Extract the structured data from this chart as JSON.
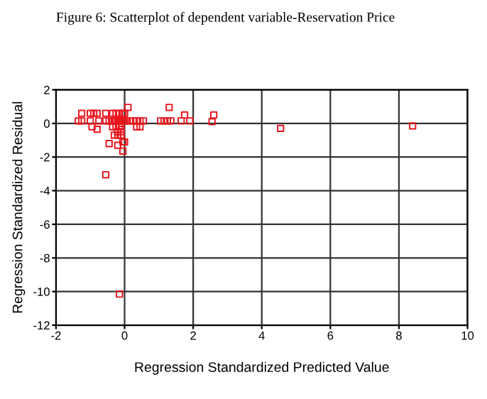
{
  "chart_data": {
    "type": "scatter",
    "title": "Figure 6: Scatterplot of dependent variable-Reservation Price",
    "xlabel": "Regression Standardized Predicted Value",
    "ylabel": "Regression Standardized Residual",
    "xlim": [
      -2,
      10
    ],
    "xticks": [
      -2,
      0,
      2,
      4,
      6,
      8,
      10
    ],
    "ylim": [
      -12,
      2
    ],
    "yticks": [
      -12,
      -10,
      -8,
      -6,
      -4,
      -2,
      0,
      2
    ],
    "grid": true,
    "marker": "square",
    "series": [
      {
        "color": "#e8141c",
        "x": [
          -1.25,
          -1.0,
          -0.9,
          -0.8,
          -0.55,
          -0.35,
          -0.25,
          -0.15,
          -0.05,
          0.0,
          0.1,
          1.3,
          1.75,
          2.6,
          -1.35,
          -1.25,
          -1.0,
          -0.75,
          -0.55,
          -0.45,
          -0.35,
          -0.3,
          -0.25,
          -0.2,
          -0.15,
          -0.1,
          -0.05,
          0.0,
          0.05,
          0.15,
          0.25,
          0.35,
          0.45,
          0.55,
          1.05,
          1.15,
          1.25,
          1.35,
          1.65,
          1.9,
          2.55,
          8.4,
          4.55,
          -0.95,
          -0.35,
          -0.25,
          0.35,
          0.45,
          -0.15,
          -0.8,
          -0.1,
          -0.2,
          -0.1,
          -0.3,
          -0.2,
          -0.1,
          0.0,
          -0.05,
          -0.45,
          -0.2,
          -0.05,
          -0.55,
          -0.15
        ],
        "values": [
          0.6,
          0.6,
          0.6,
          0.6,
          0.6,
          0.6,
          0.6,
          0.6,
          0.6,
          0.6,
          0.95,
          0.95,
          0.5,
          0.5,
          0.15,
          0.15,
          0.15,
          0.15,
          0.15,
          0.15,
          0.15,
          0.15,
          0.15,
          0.15,
          0.15,
          0.15,
          0.15,
          0.15,
          0.15,
          0.15,
          0.15,
          0.15,
          0.15,
          0.15,
          0.15,
          0.15,
          0.15,
          0.15,
          0.15,
          0.15,
          0.1,
          -0.15,
          -0.3,
          -0.2,
          -0.2,
          -0.2,
          -0.2,
          -0.2,
          -0.2,
          -0.35,
          -0.35,
          -0.5,
          -0.5,
          -0.7,
          -0.7,
          -0.7,
          -1.1,
          -1.1,
          -1.2,
          -1.3,
          -1.65,
          -3.05,
          -10.15
        ]
      }
    ]
  }
}
